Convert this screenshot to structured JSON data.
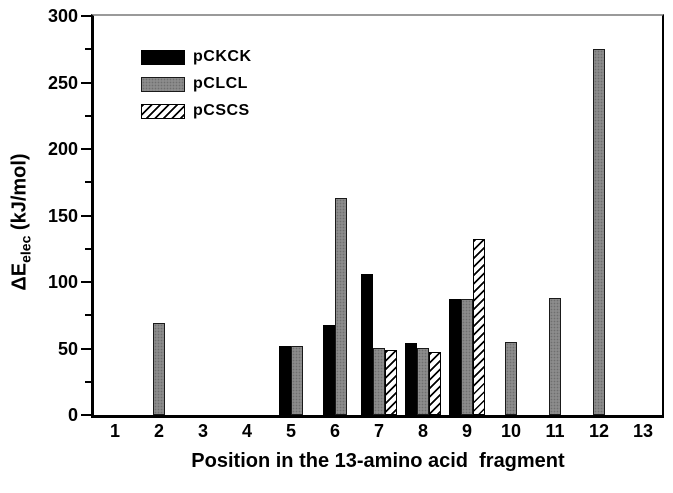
{
  "figure": {
    "xlabel": "Position in the 13-amino acid  fragment",
    "ylabel": {
      "prefix": "ΔE",
      "sub": "elec",
      "suffix": " (kJ/mol)"
    }
  },
  "colors": {
    "bar_black": "#000000",
    "bar_gray": "#8c8c8c",
    "hatch_foreground": "#000000",
    "hatch_background": "#ffffff",
    "axis": "#000000",
    "frame_top": "#9a9a9a",
    "background": "#ffffff"
  },
  "chart_data": {
    "type": "bar",
    "title": "",
    "xlabel": "Position in the 13-amino acid  fragment",
    "ylabel": "ΔE_elec (kJ/mol)",
    "categories": [
      1,
      2,
      3,
      4,
      5,
      6,
      7,
      8,
      9,
      10,
      11,
      12,
      13
    ],
    "series": [
      {
        "name": "pCKCK",
        "pattern": "solid-black",
        "color": "#000000",
        "values": [
          null,
          null,
          null,
          null,
          52,
          68,
          106,
          54,
          87,
          null,
          null,
          null,
          null
        ]
      },
      {
        "name": "pCLCL",
        "pattern": "solid-gray",
        "color": "#8c8c8c",
        "values": [
          null,
          69,
          null,
          null,
          52,
          163,
          50,
          50,
          87,
          55,
          88,
          275,
          null
        ]
      },
      {
        "name": "pCSCS",
        "pattern": "diagonal-hatch",
        "color": "#ffffff",
        "values": [
          null,
          null,
          null,
          null,
          null,
          null,
          49,
          47,
          132,
          null,
          null,
          null,
          null
        ]
      }
    ],
    "ylim": [
      0,
      300
    ],
    "ytick_interval": 50,
    "ytick_minor_interval": 25,
    "xlim_categories": [
      1,
      13
    ],
    "legend_position": "upper-left",
    "legend_entries": [
      "pCKCK",
      "pCLCL",
      "pCSCS"
    ],
    "grid": false
  }
}
